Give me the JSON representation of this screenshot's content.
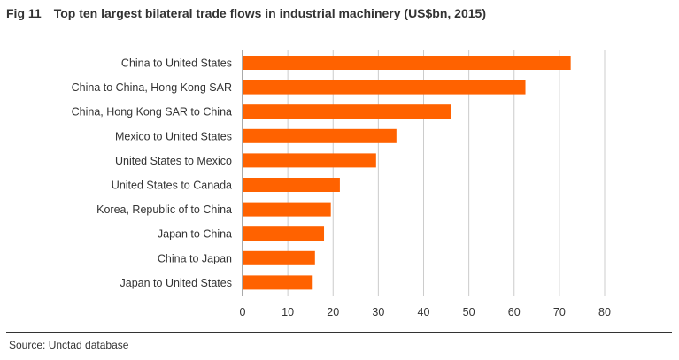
{
  "figure": {
    "number": "Fig 11",
    "title": "Top ten largest bilateral trade flows in industrial machinery (US$bn, 2015)"
  },
  "source": "Source: Unctad database",
  "chart_data": {
    "type": "bar",
    "orientation": "horizontal",
    "title": "Top ten largest bilateral trade flows in industrial machinery (US$bn, 2015)",
    "xlabel": "",
    "ylabel": "",
    "categories": [
      "China to United States",
      "China to China, Hong Kong SAR",
      "China, Hong Kong SAR to China",
      "Mexico to United States",
      "United States to Mexico",
      "United States to Canada",
      "Korea, Republic of to China",
      "Japan to China",
      "China to Japan",
      "Japan to United States"
    ],
    "values": [
      72.5,
      62.5,
      46,
      34,
      29.5,
      21.5,
      19.5,
      18,
      16,
      15.5
    ],
    "xlim": [
      0,
      80
    ],
    "xticks": [
      0,
      10,
      20,
      30,
      40,
      50,
      60,
      70,
      80
    ],
    "grid": "vertical",
    "bar_color": "#FF6200",
    "grid_color": "#CCCCCC",
    "axis_color": "#555555"
  }
}
